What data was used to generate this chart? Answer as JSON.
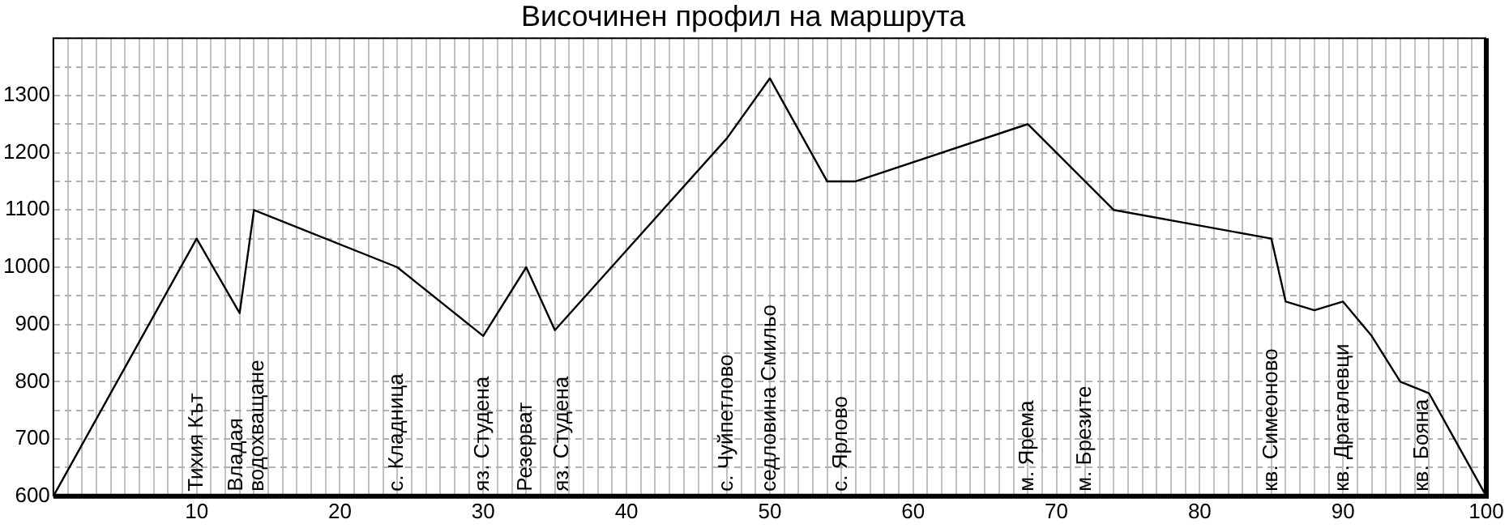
{
  "chart_data": {
    "type": "line",
    "title": "Височинен профил на маршрута",
    "x": [
      0,
      10,
      13,
      14,
      24,
      30,
      33,
      35,
      47,
      50,
      54,
      56,
      68,
      74,
      85,
      86,
      88,
      90,
      92,
      94,
      96,
      100
    ],
    "series": [
      {
        "color": "#000000",
        "values": [
          600,
          1050,
          920,
          1100,
          1000,
          880,
          1000,
          890,
          1225,
          1330,
          1150,
          1150,
          1250,
          1100,
          1050,
          940,
          925,
          940,
          880,
          800,
          780,
          600
        ]
      }
    ],
    "annotations": [
      "Тихия Кът",
      "Владая\nводохващане",
      "с. Кладница",
      "яз. Студена",
      "Резерват",
      "яз. Студена",
      "с. Чуйпетлово",
      "седловина Смильо",
      "с. Ярлово",
      "м. Ярема",
      "м. Брезите",
      "кв. Симеоново",
      "кв. Драгалевци",
      "кв. Бояна"
    ],
    "xlim": [
      0,
      100
    ],
    "ylim": [
      600,
      1400
    ],
    "xticks": [
      {
        "value": 0,
        "label": null
      },
      {
        "value": 1,
        "label": null
      },
      {
        "value": 2,
        "label": null
      },
      {
        "value": 3,
        "label": null
      },
      {
        "value": 4,
        "label": null
      },
      {
        "value": 5,
        "label": null
      },
      {
        "value": 6,
        "label": null
      },
      {
        "value": 7,
        "label": null
      },
      {
        "value": 8,
        "label": null
      },
      {
        "value": 9,
        "label": null
      },
      10,
      {
        "value": 11,
        "label": null
      },
      {
        "value": 12,
        "label": null
      },
      {
        "value": 13,
        "label": null
      },
      {
        "value": 14,
        "label": null
      },
      {
        "value": 15,
        "label": null
      },
      {
        "value": 16,
        "label": null
      },
      {
        "value": 17,
        "label": null
      },
      {
        "value": 18,
        "label": null
      },
      {
        "value": 19,
        "label": null
      },
      20,
      {
        "value": 21,
        "label": null
      },
      {
        "value": 22,
        "label": null
      },
      {
        "value": 23,
        "label": null
      },
      {
        "value": 24,
        "label": null
      },
      {
        "value": 25,
        "label": null
      },
      {
        "value": 26,
        "label": null
      },
      {
        "value": 27,
        "label": null
      },
      {
        "value": 28,
        "label": null
      },
      {
        "value": 29,
        "label": null
      },
      30,
      {
        "value": 31,
        "label": null
      },
      {
        "value": 32,
        "label": null
      },
      {
        "value": 33,
        "label": null
      },
      {
        "value": 34,
        "label": null
      },
      {
        "value": 35,
        "label": null
      },
      {
        "value": 36,
        "label": null
      },
      {
        "value": 37,
        "label": null
      },
      {
        "value": 38,
        "label": null
      },
      {
        "value": 39,
        "label": null
      },
      40,
      {
        "value": 41,
        "label": null
      },
      {
        "value": 42,
        "label": null
      },
      {
        "value": 43,
        "label": null
      },
      {
        "value": 44,
        "label": null
      },
      {
        "value": 45,
        "label": null
      },
      {
        "value": 46,
        "label": null
      },
      {
        "value": 47,
        "label": null
      },
      {
        "value": 48,
        "label": null
      },
      {
        "value": 49,
        "label": null
      },
      50,
      {
        "value": 51,
        "label": null
      },
      {
        "value": 52,
        "label": null
      },
      {
        "value": 53,
        "label": null
      },
      {
        "value": 54,
        "label": null
      },
      {
        "value": 55,
        "label": null
      },
      {
        "value": 56,
        "label": null
      },
      {
        "value": 57,
        "label": null
      },
      {
        "value": 58,
        "label": null
      },
      {
        "value": 59,
        "label": null
      },
      60,
      {
        "value": 61,
        "label": null
      },
      {
        "value": 62,
        "label": null
      },
      {
        "value": 63,
        "label": null
      },
      {
        "value": 64,
        "label": null
      },
      {
        "value": 65,
        "label": null
      },
      {
        "value": 66,
        "label": null
      },
      {
        "value": 67,
        "label": null
      },
      {
        "value": 68,
        "label": null
      },
      {
        "value": 69,
        "label": null
      },
      70,
      {
        "value": 71,
        "label": null
      },
      {
        "value": 72,
        "label": null
      },
      {
        "value": 73,
        "label": null
      },
      {
        "value": 74,
        "label": null
      },
      {
        "value": 75,
        "label": null
      },
      {
        "value": 76,
        "label": null
      },
      {
        "value": 77,
        "label": null
      },
      {
        "value": 78,
        "label": null
      },
      {
        "value": 79,
        "label": null
      },
      80,
      {
        "value": 81,
        "label": null
      },
      {
        "value": 82,
        "label": null
      },
      {
        "value": 83,
        "label": null
      },
      {
        "value": 84,
        "label": null
      },
      {
        "value": 85,
        "label": null
      },
      {
        "value": 86,
        "label": null
      },
      {
        "value": 87,
        "label": null
      },
      {
        "value": 88,
        "label": null
      },
      {
        "value": 89,
        "label": null
      },
      90,
      {
        "value": 91,
        "label": null
      },
      {
        "value": 92,
        "label": null
      },
      {
        "value": 93,
        "label": null
      },
      {
        "value": 94,
        "label": null
      },
      {
        "value": 95,
        "label": null
      },
      {
        "value": 96,
        "label": null
      },
      {
        "value": 97,
        "label": null
      },
      {
        "value": 98,
        "label": null
      },
      {
        "value": 99,
        "label": null
      },
      100
    ],
    "yticks": [
      600,
      {
        "value": 650,
        "label": null
      },
      700,
      {
        "value": 750,
        "label": null
      },
      800,
      {
        "value": 850,
        "label": null
      },
      900,
      {
        "value": 950,
        "label": null
      },
      1000,
      {
        "value": 1050,
        "label": null
      },
      1100,
      {
        "value": 1150,
        "label": null
      },
      1200,
      {
        "value": 1250,
        "label": null
      },
      1300,
      {
        "value": 1350,
        "label": null
      },
      {
        "value": 1400,
        "label": null
      }
    ],
    "grid": true,
    "legend": false,
    "marker": "none",
    "line_style": "solid"
  }
}
